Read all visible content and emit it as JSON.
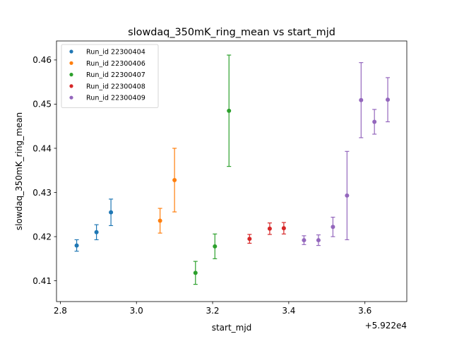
{
  "chart_data": {
    "type": "scatter",
    "title": "slowdaq_350mK_ring_mean vs start_mjd",
    "xlabel": "start_mjd",
    "ylabel": "slowdaq_350mK_ring_mean",
    "x_offset_label": "+5.922e4",
    "xlim": [
      2.79,
      3.71
    ],
    "ylim": [
      0.4053,
      0.4643
    ],
    "xticks": [
      2.8,
      3.0,
      3.2,
      3.4,
      3.6
    ],
    "xtick_labels": [
      "2.8",
      "3.0",
      "3.2",
      "3.4",
      "3.6"
    ],
    "yticks": [
      0.41,
      0.42,
      0.43,
      0.44,
      0.45,
      0.46
    ],
    "ytick_labels": [
      "0.41",
      "0.42",
      "0.43",
      "0.44",
      "0.45",
      "0.46"
    ],
    "grid": false,
    "legend_position": "top-left",
    "series": [
      {
        "name": "Run_id 22300404",
        "color": "#1f77b4",
        "points": [
          {
            "x": 2.843,
            "y": 0.418,
            "err": 0.0013
          },
          {
            "x": 2.895,
            "y": 0.421,
            "err": 0.0017
          },
          {
            "x": 2.933,
            "y": 0.4255,
            "err": 0.003
          }
        ]
      },
      {
        "name": "Run_id 22300406",
        "color": "#ff7f0e",
        "points": [
          {
            "x": 3.062,
            "y": 0.4236,
            "err": 0.0028
          },
          {
            "x": 3.1,
            "y": 0.4328,
            "err": 0.0072
          }
        ]
      },
      {
        "name": "Run_id 22300407",
        "color": "#2ca02c",
        "points": [
          {
            "x": 3.155,
            "y": 0.4118,
            "err": 0.0026
          },
          {
            "x": 3.206,
            "y": 0.4178,
            "err": 0.0028
          },
          {
            "x": 3.243,
            "y": 0.4485,
            "err": 0.0126
          }
        ]
      },
      {
        "name": "Run_id 22300408",
        "color": "#d62728",
        "points": [
          {
            "x": 3.297,
            "y": 0.4195,
            "err": 0.001
          },
          {
            "x": 3.35,
            "y": 0.4218,
            "err": 0.0013
          },
          {
            "x": 3.387,
            "y": 0.4219,
            "err": 0.0013
          }
        ]
      },
      {
        "name": "Run_id 22300409",
        "color": "#9467bd",
        "points": [
          {
            "x": 3.44,
            "y": 0.4192,
            "err": 0.001
          },
          {
            "x": 3.478,
            "y": 0.4192,
            "err": 0.0012
          },
          {
            "x": 3.516,
            "y": 0.4222,
            "err": 0.0022
          },
          {
            "x": 3.553,
            "y": 0.4293,
            "err": 0.01
          },
          {
            "x": 3.59,
            "y": 0.4509,
            "err": 0.0085
          },
          {
            "x": 3.625,
            "y": 0.446,
            "err": 0.0028
          },
          {
            "x": 3.66,
            "y": 0.451,
            "err": 0.005
          }
        ]
      }
    ]
  }
}
